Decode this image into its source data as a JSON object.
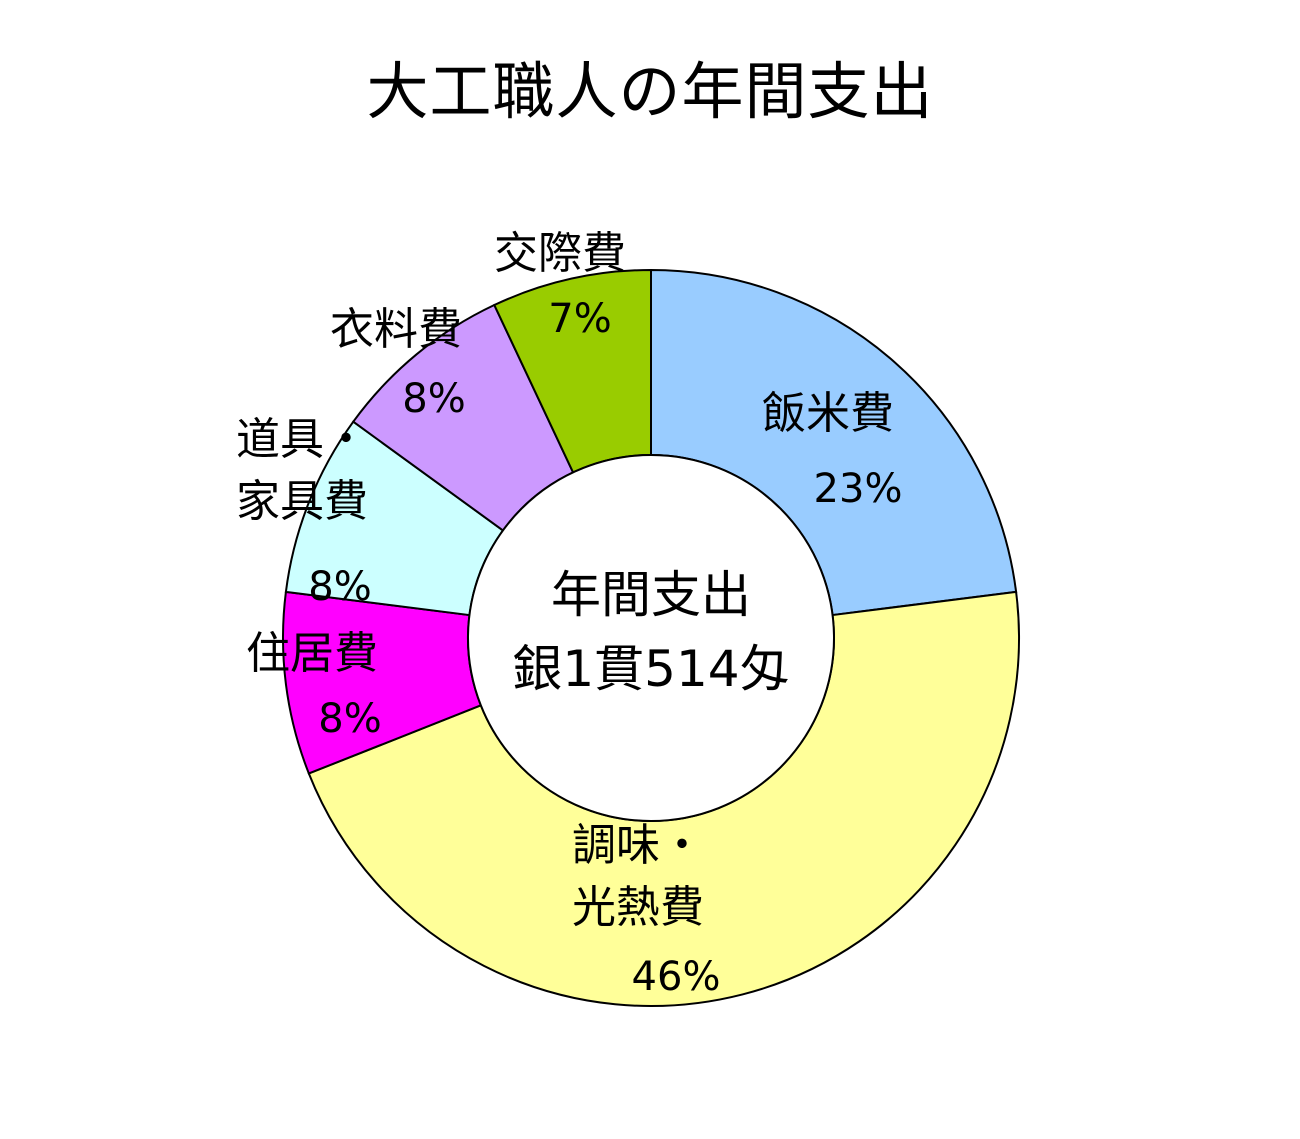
{
  "chart_data": {
    "type": "pie",
    "title": "大工職人の年間支出",
    "center_label": [
      "年間支出",
      "銀1貫514匁"
    ],
    "slices": [
      {
        "name": [
          "飯米費"
        ],
        "percent_label": "23%",
        "value": 23,
        "color": "#99ccff"
      },
      {
        "name": [
          "調味・",
          "光熱費"
        ],
        "percent_label": "46%",
        "value": 46,
        "color": "#ffff99"
      },
      {
        "name": [
          "住居費"
        ],
        "percent_label": "8%",
        "value": 8,
        "color": "#ff00ff"
      },
      {
        "name": [
          "道具・",
          "家具費"
        ],
        "percent_label": "8%",
        "value": 8,
        "color": "#ccffff"
      },
      {
        "name": [
          "衣料費"
        ],
        "percent_label": "8%",
        "value": 8,
        "color": "#cc99ff"
      },
      {
        "name": [
          "交際費"
        ],
        "percent_label": "7%",
        "value": 7,
        "color": "#99cc00"
      }
    ]
  }
}
